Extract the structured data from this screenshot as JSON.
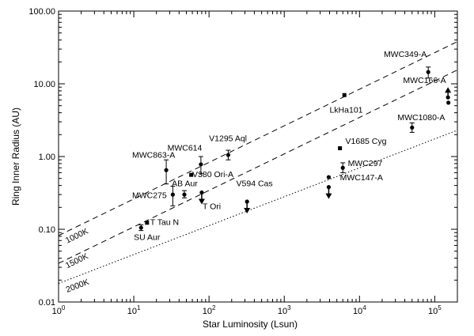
{
  "chart_data": {
    "type": "scatter",
    "xlabel": "Star Luminosity (Lsun)",
    "ylabel": "Ring Inner Radius (AU)",
    "xscale": "log",
    "yscale": "log",
    "xlim": [
      1,
      200000
    ],
    "ylim": [
      0.01,
      100
    ],
    "grid": false,
    "x_tick_labels": [
      {
        "value": 1,
        "base": "10",
        "exp": "0"
      },
      {
        "value": 10,
        "base": "10",
        "exp": "1"
      },
      {
        "value": 100,
        "base": "10",
        "exp": "2"
      },
      {
        "value": 1000,
        "base": "10",
        "exp": "3"
      },
      {
        "value": 10000,
        "base": "10",
        "exp": "4"
      },
      {
        "value": 100000,
        "base": "10",
        "exp": "5"
      }
    ],
    "y_tick_labels": [
      {
        "value": 0.01,
        "label": "0.01"
      },
      {
        "value": 0.1,
        "label": "0.10"
      },
      {
        "value": 1,
        "label": "1.00"
      },
      {
        "value": 10,
        "label": "10.00"
      },
      {
        "value": 100,
        "label": "100.00"
      }
    ],
    "lines": [
      {
        "label": "1000K",
        "style": "dashed",
        "points": [
          [
            1,
            0.082
          ],
          [
            200000,
            38.0
          ]
        ]
      },
      {
        "label": "1500K",
        "style": "dashed",
        "points": [
          [
            1,
            0.034
          ],
          [
            200000,
            15.5
          ]
        ]
      },
      {
        "label": "2000K",
        "style": "dotted",
        "points": [
          [
            1,
            0.018
          ],
          [
            200000,
            2.3
          ]
        ]
      }
    ],
    "line_label_positions": [
      {
        "label": "1000K",
        "x": 1.3,
        "y": 0.064
      },
      {
        "label": "1500K",
        "x": 1.3,
        "y": 0.029
      },
      {
        "label": "2000K",
        "x": 1.3,
        "y": 0.0135
      }
    ],
    "points": [
      {
        "name": "SU Aur",
        "x": 12.5,
        "y": 0.105,
        "err": [
          0.096,
          0.115
        ],
        "marker": "circle",
        "label_x": 10,
        "label_y": 0.071
      },
      {
        "name": "T Tau N",
        "x": 15,
        "y": 0.123,
        "marker": "square",
        "label_x": 16.5,
        "label_y": 0.115
      },
      {
        "name": "MWC275",
        "x": 33,
        "y": 0.3,
        "err": [
          0.21,
          0.39
        ],
        "marker": "circle",
        "label_x": 9.5,
        "label_y": 0.27
      },
      {
        "name": "MWC863-A",
        "x": 27,
        "y": 0.65,
        "err": [
          0.42,
          0.9
        ],
        "marker": "circle",
        "label_x": 9.5,
        "label_y": 0.96
      },
      {
        "name": "AB Aur",
        "x": 47,
        "y": 0.3,
        "err": [
          0.27,
          0.34
        ],
        "marker": "circle",
        "label_x": 32,
        "label_y": 0.39
      },
      {
        "name": "MWC614",
        "x": 78,
        "y": 0.78,
        "err": [
          0.58,
          1.0
        ],
        "marker": "circle",
        "label_x": 28,
        "label_y": 1.2
      },
      {
        "name": "V380 Ori-A",
        "x": 58,
        "y": 0.56,
        "marker": "square",
        "label_x": 60,
        "label_y": 0.52
      },
      {
        "name": "T Ori",
        "x": 80,
        "y": 0.32,
        "marker": "circle",
        "upper_limit": true,
        "label_x": 82,
        "label_y": 0.19
      },
      {
        "name": "V1295 Aql",
        "x": 180,
        "y": 1.05,
        "err": [
          0.9,
          1.22
        ],
        "marker": "circle",
        "label_x": 100,
        "label_y": 1.62
      },
      {
        "name": "V594 Cas",
        "x": 320,
        "y": 0.24,
        "marker": "circle",
        "upper_limit": true,
        "label_x": 230,
        "label_y": 0.39
      },
      {
        "name": "LkHa101",
        "x": 6300,
        "y": 7.0,
        "marker": "square",
        "label_x": 4000,
        "label_y": 4.0
      },
      {
        "name": "V1685 Cyg",
        "x": 5500,
        "y": 1.3,
        "marker": "square",
        "label_x": 6500,
        "label_y": 1.5
      },
      {
        "name": "MWC297",
        "x": 6000,
        "y": 0.7,
        "err": [
          0.6,
          0.82
        ],
        "marker": "circle",
        "label_x": 7000,
        "label_y": 0.74
      },
      {
        "name": "MWC147-A",
        "x": 3900,
        "y": 0.52,
        "marker": "circle",
        "label_x": 5500,
        "label_y": 0.47
      },
      {
        "name": "",
        "x": 3900,
        "y": 0.38,
        "marker": "circle",
        "upper_limit": true
      },
      {
        "name": "MWC1080-A",
        "x": 50000,
        "y": 2.5,
        "err": [
          2.15,
          2.9
        ],
        "marker": "circle",
        "label_x": 32000,
        "label_y": 3.15
      },
      {
        "name": "MWC349-A",
        "x": 82000,
        "y": 14.5,
        "err": [
          12.0,
          17.0
        ],
        "marker": "circle",
        "label_x": 21000,
        "label_y": 23.5
      },
      {
        "name": "MWC166-A",
        "x": 150000,
        "y": 6.5,
        "marker": "circle",
        "lower_limit": true,
        "label_x": 38000,
        "label_y": 10.2
      },
      {
        "name": "",
        "x": 152000,
        "y": 5.5,
        "marker": "circle"
      }
    ]
  }
}
